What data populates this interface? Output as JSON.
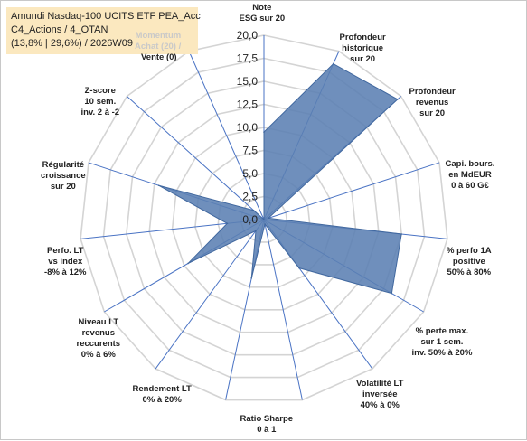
{
  "title": {
    "line1": "Amundi Nasdaq-100 UCITS ETF PEA_Acc",
    "line2": "C4_Actions / 4_OTAN",
    "line3": "(13,8% | 29,6%) / 2026W09"
  },
  "chart_data": {
    "type": "radar",
    "rlim": [
      0,
      20
    ],
    "grid": true,
    "ticks": [
      "0,0",
      "2,5",
      "5,0",
      "7,5",
      "10,0",
      "12,5",
      "15,0",
      "17,5",
      "20,0"
    ],
    "series": [
      {
        "color": "#5b7fb3",
        "values": [
          9.5,
          18.5,
          19.5,
          0.5,
          15,
          16,
          6.5,
          0.5,
          6.5,
          1.5,
          9.5,
          4,
          12,
          1.5,
          0
        ]
      }
    ],
    "axes": [
      {
        "lines": [
          "Note",
          "ESG sur 20"
        ]
      },
      {
        "lines": [
          "Profondeur",
          "historique",
          "sur 20"
        ]
      },
      {
        "lines": [
          "Profondeur",
          "revenus",
          "sur 20"
        ]
      },
      {
        "lines": [
          "Capi. bours.",
          "en MdEUR",
          "0 à 60 G€"
        ]
      },
      {
        "lines": [
          "% perfo 1A",
          "positive",
          "50% à 80%"
        ]
      },
      {
        "lines": [
          "% perte max.",
          "sur 1 sem.",
          "inv. 50% à 20%"
        ]
      },
      {
        "lines": [
          "Volatilité LT",
          "inversée",
          "40% à 0%"
        ]
      },
      {
        "lines": [
          "Ratio Sharpe",
          "0 à 1"
        ]
      },
      {
        "lines": [
          "Rendement LT",
          "0% à 20%"
        ]
      },
      {
        "lines": [
          "Niveau LT",
          "revenus",
          "reccurents",
          "0% à 6%"
        ]
      },
      {
        "lines": [
          "Perfo. LT",
          "vs index",
          "-8% à 12%"
        ]
      },
      {
        "lines": [
          "Régularité",
          "croissance",
          "sur 20"
        ]
      },
      {
        "lines": [
          "Z-score",
          "10 sem.",
          "inv. 2 à -2"
        ]
      },
      {
        "lines": [
          "Vente (0)"
        ]
      },
      {
        "lines": [
          "Momentum",
          "Achat (20) /"
        ]
      }
    ]
  }
}
